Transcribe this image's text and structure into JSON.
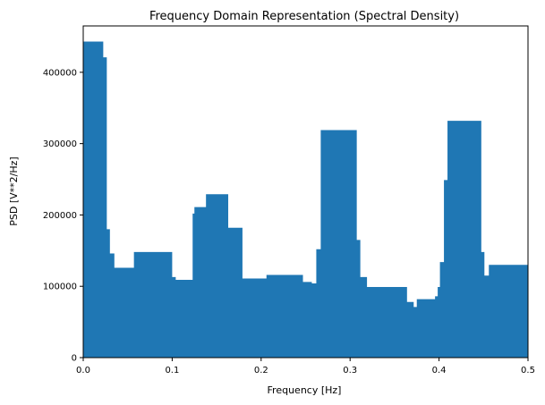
{
  "chart_data": {
    "type": "area",
    "title": "Frequency Domain Representation (Spectral Density)",
    "xlabel": "Frequency [Hz]",
    "ylabel": "PSD [V**2/Hz]",
    "xlim": [
      0,
      0.5
    ],
    "ylim": [
      0,
      465000
    ],
    "grid": false,
    "color": "#1f77b4",
    "x_ticks": [
      {
        "value": 0.0,
        "label": "0.0"
      },
      {
        "value": 0.1,
        "label": "0.1"
      },
      {
        "value": 0.2,
        "label": "0.2"
      },
      {
        "value": 0.3,
        "label": "0.3"
      },
      {
        "value": 0.4,
        "label": "0.4"
      },
      {
        "value": 0.5,
        "label": "0.5"
      }
    ],
    "y_ticks": [
      {
        "value": 0,
        "label": "0"
      },
      {
        "value": 100000,
        "label": "100000"
      },
      {
        "value": 200000,
        "label": "200000"
      },
      {
        "value": 300000,
        "label": "300000"
      },
      {
        "value": 400000,
        "label": "400000"
      }
    ],
    "series": [
      {
        "x": [
          0.0,
          0.0225,
          0.0265,
          0.03,
          0.035,
          0.057,
          0.1,
          0.104,
          0.119,
          0.123,
          0.125,
          0.138,
          0.163,
          0.179,
          0.206,
          0.233,
          0.247,
          0.257,
          0.262,
          0.267,
          0.3075,
          0.3115,
          0.319,
          0.35,
          0.364,
          0.3715,
          0.375,
          0.3925,
          0.3955,
          0.3985,
          0.401,
          0.4055,
          0.4095,
          0.4475,
          0.451,
          0.456,
          0.4965,
          0.5
        ],
        "y": [
          443000,
          421000,
          180000,
          146000,
          126000,
          148000,
          113000,
          109000,
          109000,
          202000,
          211000,
          229000,
          182000,
          111000,
          116000,
          116000,
          106000,
          104000,
          152000,
          319000,
          165000,
          113000,
          99000,
          99000,
          78000,
          71000,
          82000,
          82000,
          86000,
          99000,
          134000,
          249000,
          332000,
          148000,
          115000,
          130000,
          130000,
          98000
        ]
      }
    ]
  }
}
